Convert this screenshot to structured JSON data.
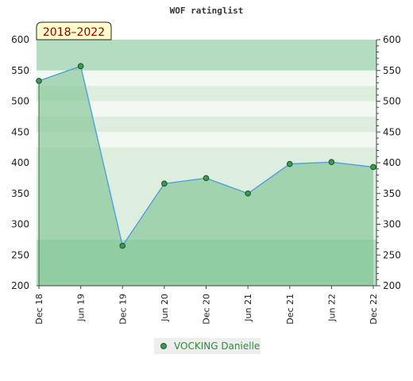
{
  "chart_data": {
    "type": "area",
    "title": "WOF ratinglist",
    "period_label": "2018–2022",
    "categories": [
      "Dec 18",
      "Jun 19",
      "Dec 19",
      "Jun 20",
      "Dec 20",
      "Jun 21",
      "Dec 21",
      "Jun 22",
      "Dec 22"
    ],
    "series": [
      {
        "name": "VOCKING Danielle",
        "values": [
          533,
          557,
          265,
          366,
          375,
          350,
          398,
          401,
          393
        ],
        "color": "#4a9be0",
        "fill": "#7cc48f"
      }
    ],
    "yticks": [
      600,
      550,
      500,
      450,
      400,
      350,
      300,
      250,
      200
    ],
    "ylim": [
      200,
      600
    ],
    "y_axis_both_sides": true,
    "grid": true,
    "legend": "bottom-center",
    "colors": {
      "band_light": "#f2f8f2",
      "band_mid": "#ddeedf",
      "band_dark": "#b3dcc0",
      "area": "#7cc48f",
      "line": "#4a9be0",
      "marker": "#3a9a4e",
      "period_bg": "#ffffcc"
    }
  }
}
